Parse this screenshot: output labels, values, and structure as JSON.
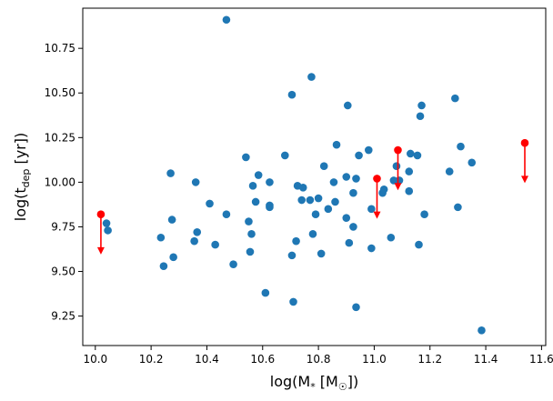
{
  "chart_data": {
    "type": "scatter",
    "title": "",
    "xlabel": {
      "base": "log(M",
      "sub": "*",
      "mid": " [M",
      "sun": "☉",
      "end": "])"
    },
    "ylabel": {
      "base": "log(t",
      "sub": "dep",
      "end": " [yr])"
    },
    "xlim": [
      9.955,
      11.615
    ],
    "ylim": [
      9.085,
      10.975
    ],
    "xticks": [
      10.0,
      10.2,
      10.4,
      10.6,
      10.8,
      11.0,
      11.2,
      11.4,
      11.6
    ],
    "xtick_labels": [
      "10.0",
      "10.2",
      "10.4",
      "10.6",
      "10.8",
      "11.0",
      "11.2",
      "11.4",
      "11.6"
    ],
    "yticks": [
      9.25,
      9.5,
      9.75,
      10.0,
      10.25,
      10.5,
      10.75
    ],
    "ytick_labels": [
      "9.25",
      "9.50",
      "9.75",
      "10.00",
      "10.25",
      "10.50",
      "10.75"
    ],
    "grid": false,
    "legend": "none",
    "series": [
      {
        "marker": "circle",
        "color": "#1f77b4",
        "points": [
          [
            10.04,
            9.77
          ],
          [
            10.045,
            9.73
          ],
          [
            10.235,
            9.69
          ],
          [
            10.245,
            9.53
          ],
          [
            10.27,
            10.05
          ],
          [
            10.275,
            9.79
          ],
          [
            10.28,
            9.58
          ],
          [
            10.355,
            9.67
          ],
          [
            10.36,
            10.0
          ],
          [
            10.365,
            9.72
          ],
          [
            10.41,
            9.88
          ],
          [
            10.43,
            9.65
          ],
          [
            10.47,
            10.91
          ],
          [
            10.47,
            9.82
          ],
          [
            10.495,
            9.54
          ],
          [
            10.54,
            10.14
          ],
          [
            10.55,
            9.78
          ],
          [
            10.555,
            9.61
          ],
          [
            10.56,
            9.71
          ],
          [
            10.565,
            9.98
          ],
          [
            10.575,
            9.89
          ],
          [
            10.585,
            10.04
          ],
          [
            10.61,
            9.38
          ],
          [
            10.625,
            10.0
          ],
          [
            10.625,
            9.87
          ],
          [
            10.625,
            9.86
          ],
          [
            10.68,
            10.15
          ],
          [
            10.705,
            10.49
          ],
          [
            10.705,
            9.59
          ],
          [
            10.71,
            9.33
          ],
          [
            10.72,
            9.67
          ],
          [
            10.725,
            9.98
          ],
          [
            10.74,
            9.9
          ],
          [
            10.745,
            9.97
          ],
          [
            10.77,
            9.9
          ],
          [
            10.775,
            10.59
          ],
          [
            10.78,
            9.71
          ],
          [
            10.79,
            9.82
          ],
          [
            10.8,
            9.91
          ],
          [
            10.81,
            9.6
          ],
          [
            10.82,
            10.09
          ],
          [
            10.835,
            9.85
          ],
          [
            10.855,
            10.0
          ],
          [
            10.86,
            9.89
          ],
          [
            10.865,
            10.21
          ],
          [
            10.9,
            10.03
          ],
          [
            10.9,
            9.8
          ],
          [
            10.905,
            10.43
          ],
          [
            10.91,
            9.66
          ],
          [
            10.925,
            9.94
          ],
          [
            10.925,
            9.75
          ],
          [
            10.935,
            10.02
          ],
          [
            10.935,
            9.3
          ],
          [
            10.945,
            10.15
          ],
          [
            10.98,
            10.18
          ],
          [
            10.99,
            9.85
          ],
          [
            10.99,
            9.63
          ],
          [
            11.03,
            9.94
          ],
          [
            11.035,
            9.96
          ],
          [
            11.06,
            9.69
          ],
          [
            11.07,
            10.01
          ],
          [
            11.08,
            10.09
          ],
          [
            11.09,
            10.01
          ],
          [
            11.125,
            10.06
          ],
          [
            11.125,
            9.95
          ],
          [
            11.13,
            10.16
          ],
          [
            11.155,
            10.15
          ],
          [
            11.16,
            9.65
          ],
          [
            11.165,
            10.37
          ],
          [
            11.17,
            10.43
          ],
          [
            11.18,
            9.82
          ],
          [
            11.27,
            10.06
          ],
          [
            11.29,
            10.47
          ],
          [
            11.3,
            9.86
          ],
          [
            11.31,
            10.2
          ],
          [
            11.35,
            10.11
          ],
          [
            11.385,
            9.17
          ]
        ]
      },
      {
        "marker": "circle",
        "color": "#ff0000",
        "upper_limit": true,
        "arrow_length": 0.22,
        "points": [
          [
            10.02,
            9.82
          ],
          [
            11.01,
            10.02
          ],
          [
            11.085,
            10.18
          ],
          [
            11.54,
            10.22
          ]
        ]
      }
    ]
  }
}
